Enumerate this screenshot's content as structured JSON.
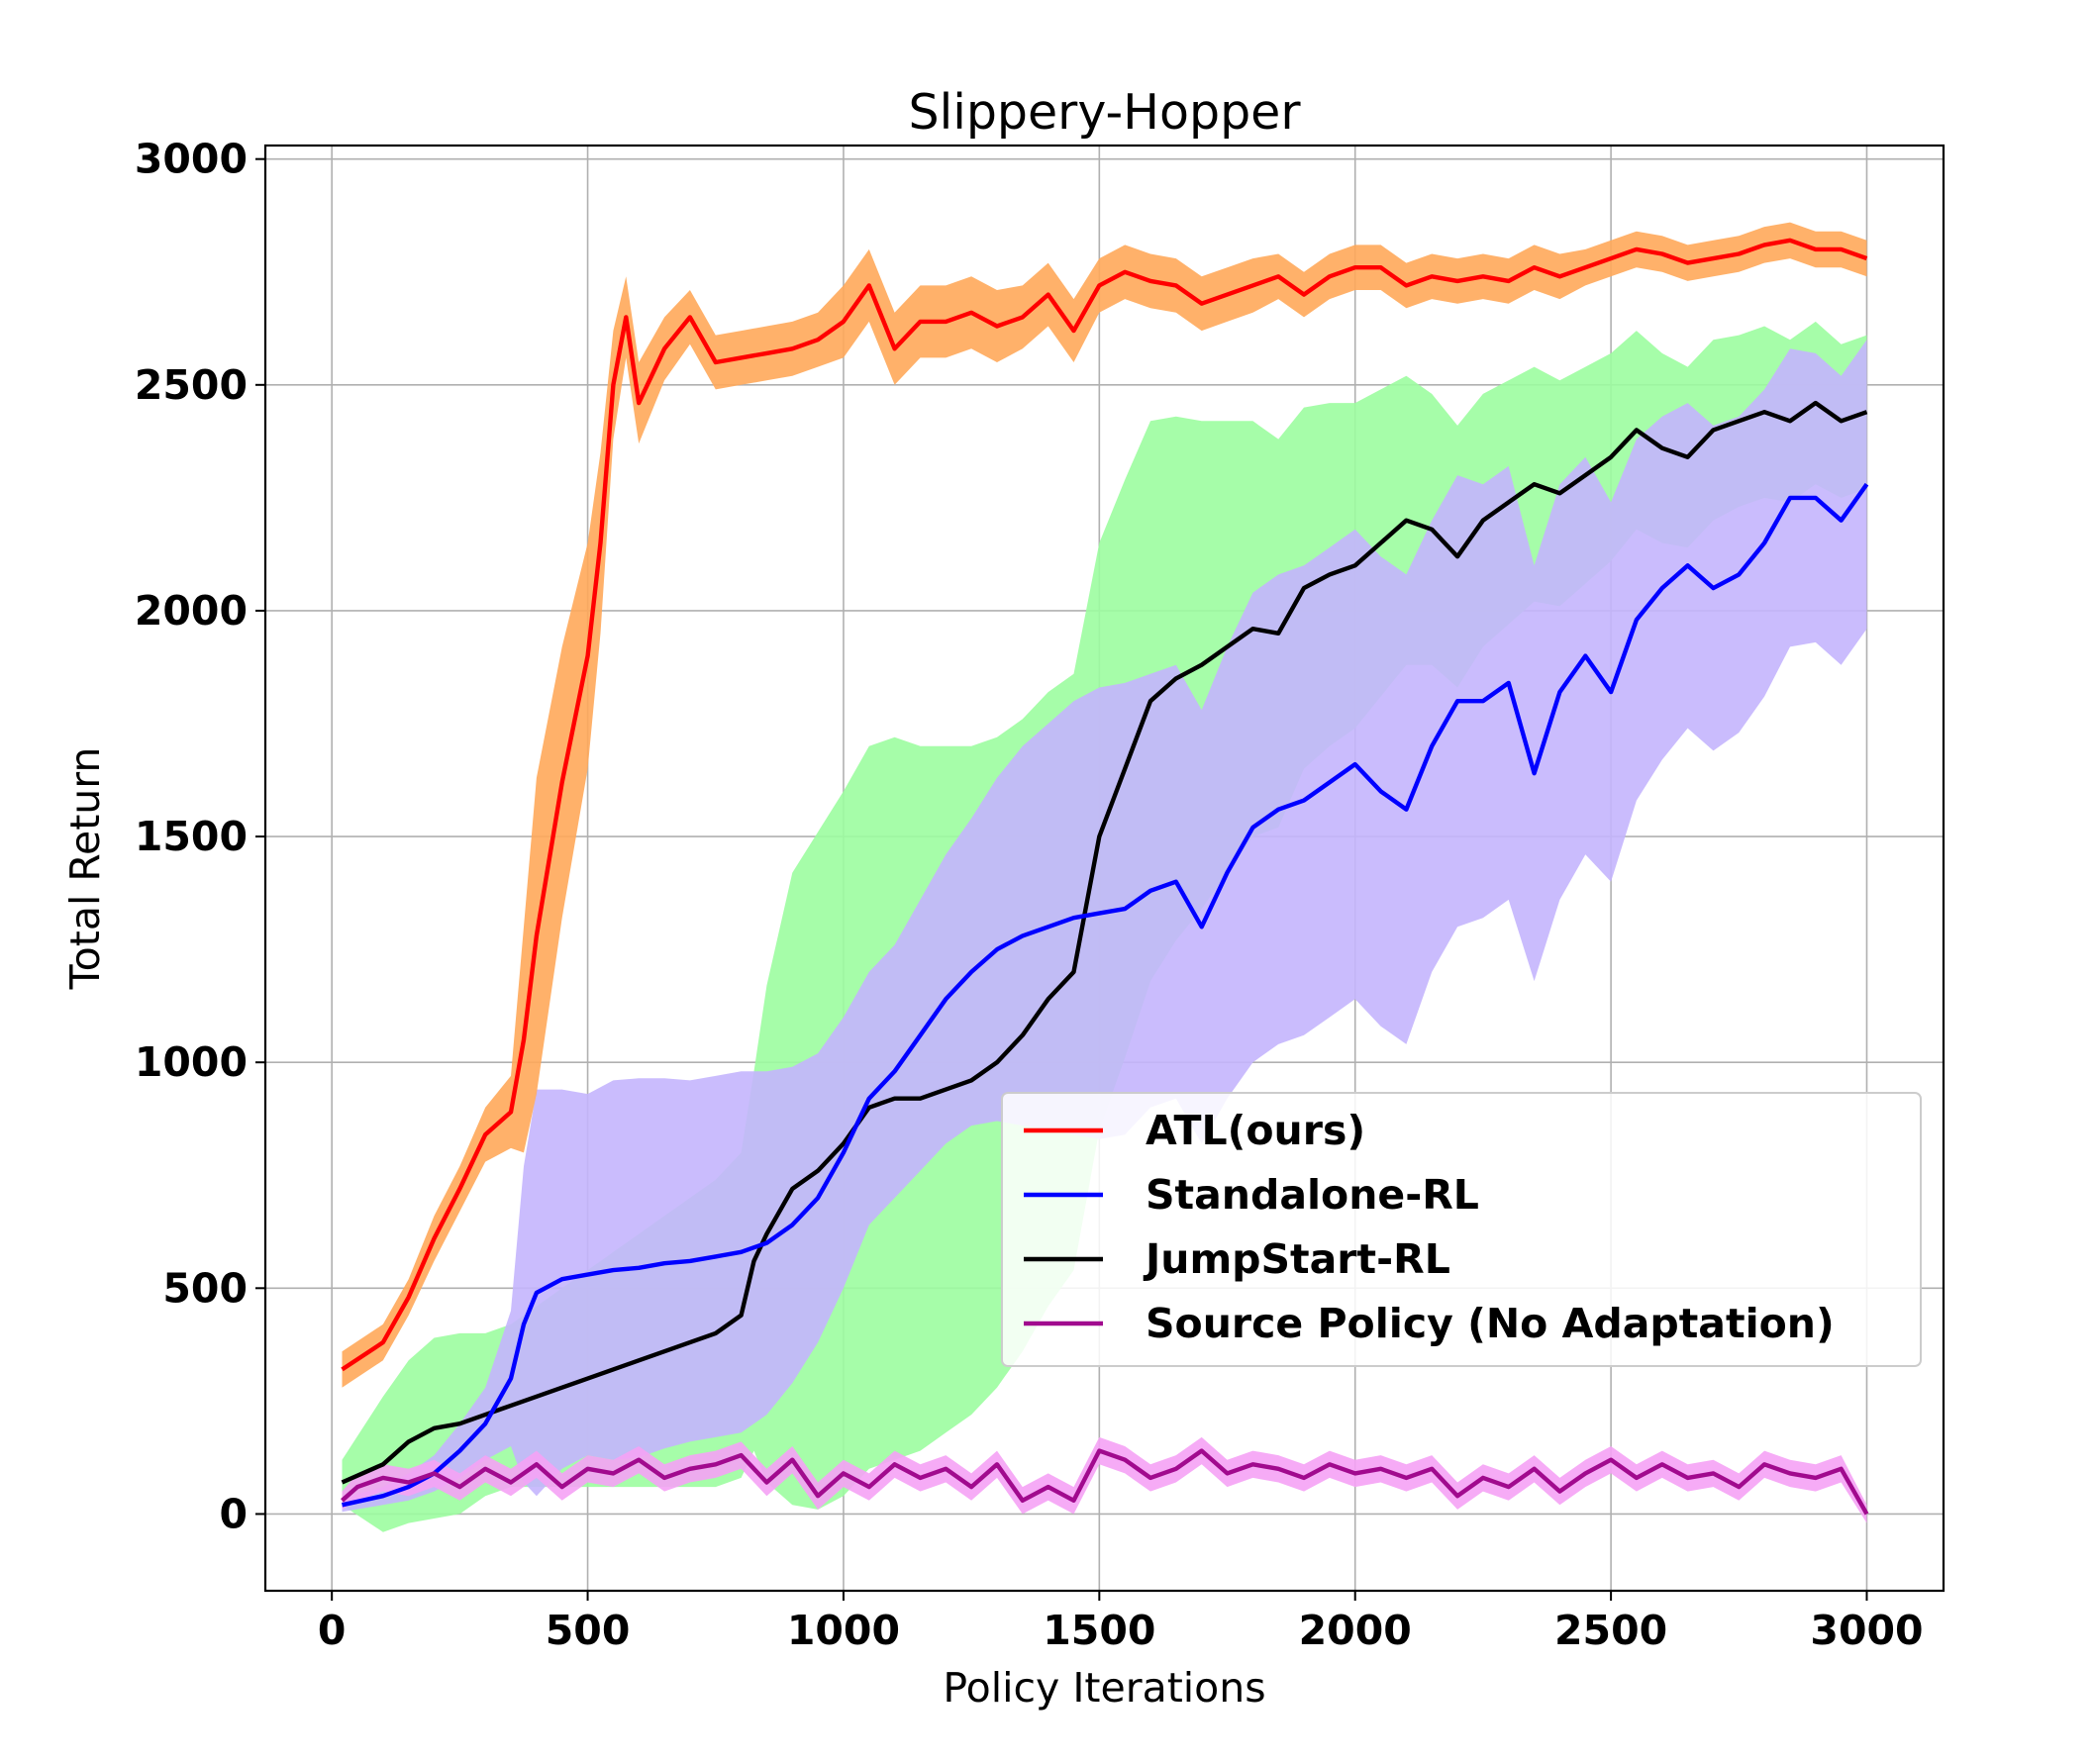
{
  "chart_data": {
    "type": "line",
    "title": "Slippery-Hopper",
    "xlabel": "Policy Iterations",
    "ylabel": "Total Return",
    "xlim": [
      -130,
      3150
    ],
    "ylim": [
      -170,
      3030
    ],
    "xticks": [
      0,
      500,
      1000,
      1500,
      2000,
      2500,
      3000
    ],
    "yticks": [
      0,
      500,
      1000,
      1500,
      2000,
      2500,
      3000
    ],
    "grid": true,
    "legend_position": "center-right",
    "series": [
      {
        "name": "ATL(ours)",
        "color": "#ff0000",
        "band_color": "#ffa95a",
        "x": [
          20,
          100,
          150,
          200,
          250,
          300,
          350,
          375,
          400,
          450,
          500,
          525,
          550,
          575,
          600,
          650,
          700,
          750,
          800,
          850,
          900,
          950,
          1000,
          1050,
          1100,
          1150,
          1200,
          1250,
          1300,
          1350,
          1400,
          1450,
          1500,
          1550,
          1600,
          1650,
          1700,
          1750,
          1800,
          1850,
          1900,
          1950,
          2000,
          2050,
          2100,
          2150,
          2200,
          2250,
          2300,
          2350,
          2400,
          2450,
          2500,
          2550,
          2600,
          2650,
          2700,
          2750,
          2800,
          2850,
          2900,
          2950,
          3000
        ],
        "y": [
          320,
          380,
          480,
          610,
          720,
          840,
          890,
          1050,
          1280,
          1620,
          1900,
          2150,
          2500,
          2650,
          2460,
          2580,
          2650,
          2550,
          2560,
          2570,
          2580,
          2600,
          2640,
          2720,
          2580,
          2640,
          2640,
          2660,
          2630,
          2650,
          2700,
          2620,
          2720,
          2750,
          2730,
          2720,
          2680,
          2700,
          2720,
          2740,
          2700,
          2740,
          2760,
          2760,
          2720,
          2740,
          2730,
          2740,
          2730,
          2760,
          2740,
          2760,
          2780,
          2800,
          2790,
          2770,
          2780,
          2790,
          2810,
          2820,
          2800,
          2800,
          2780
        ],
        "band": [
          40,
          40,
          40,
          50,
          50,
          60,
          80,
          250,
          350,
          300,
          250,
          200,
          120,
          90,
          90,
          70,
          60,
          60,
          60,
          60,
          60,
          60,
          80,
          80,
          80,
          80,
          80,
          80,
          80,
          70,
          70,
          70,
          60,
          60,
          60,
          60,
          60,
          60,
          60,
          50,
          50,
          50,
          50,
          50,
          50,
          50,
          50,
          50,
          50,
          50,
          50,
          40,
          40,
          40,
          40,
          40,
          40,
          40,
          40,
          40,
          40,
          40,
          40
        ]
      },
      {
        "name": "Standalone-RL",
        "color": "#0000ff",
        "band_color": "#c4b5fd",
        "x": [
          20,
          100,
          150,
          200,
          250,
          300,
          350,
          375,
          400,
          450,
          500,
          550,
          600,
          650,
          700,
          750,
          800,
          850,
          900,
          950,
          1000,
          1050,
          1100,
          1150,
          1200,
          1250,
          1300,
          1350,
          1400,
          1450,
          1500,
          1550,
          1600,
          1650,
          1700,
          1750,
          1800,
          1850,
          1900,
          1950,
          2000,
          2050,
          2100,
          2150,
          2200,
          2250,
          2300,
          2350,
          2400,
          2450,
          2500,
          2550,
          2600,
          2650,
          2700,
          2750,
          2800,
          2850,
          2900,
          2950,
          3000
        ],
        "y": [
          20,
          40,
          60,
          90,
          140,
          200,
          300,
          420,
          490,
          520,
          530,
          540,
          545,
          555,
          560,
          570,
          580,
          600,
          640,
          700,
          800,
          920,
          980,
          1060,
          1140,
          1200,
          1250,
          1280,
          1300,
          1320,
          1330,
          1340,
          1380,
          1400,
          1300,
          1420,
          1520,
          1560,
          1580,
          1620,
          1660,
          1600,
          1560,
          1700,
          1800,
          1800,
          1840,
          1640,
          1820,
          1900,
          1820,
          1980,
          2050,
          2100,
          2050,
          2080,
          2150,
          2250,
          2250,
          2200,
          2280
        ],
        "band": [
          15,
          20,
          30,
          40,
          60,
          80,
          150,
          350,
          450,
          420,
          400,
          420,
          420,
          410,
          400,
          400,
          400,
          380,
          350,
          320,
          300,
          280,
          280,
          300,
          320,
          340,
          380,
          420,
          450,
          480,
          500,
          500,
          480,
          480,
          480,
          500,
          520,
          520,
          520,
          520,
          520,
          520,
          520,
          500,
          500,
          480,
          480,
          460,
          460,
          440,
          420,
          400,
          380,
          360,
          360,
          350,
          340,
          330,
          320,
          320,
          320
        ]
      },
      {
        "name": "JumpStart-RL",
        "color": "#000000",
        "band_color": "#9cfda0",
        "x": [
          20,
          100,
          150,
          200,
          250,
          300,
          350,
          400,
          450,
          500,
          550,
          600,
          650,
          700,
          750,
          800,
          825,
          850,
          900,
          950,
          1000,
          1050,
          1100,
          1150,
          1200,
          1250,
          1300,
          1350,
          1400,
          1450,
          1500,
          1550,
          1600,
          1650,
          1700,
          1750,
          1800,
          1850,
          1900,
          1950,
          2000,
          2050,
          2100,
          2150,
          2200,
          2250,
          2300,
          2350,
          2400,
          2450,
          2500,
          2550,
          2600,
          2650,
          2700,
          2750,
          2800,
          2850,
          2900,
          2950,
          3000
        ],
        "y": [
          70,
          110,
          160,
          190,
          200,
          220,
          240,
          260,
          280,
          300,
          320,
          340,
          360,
          380,
          400,
          440,
          560,
          620,
          720,
          760,
          820,
          900,
          920,
          920,
          940,
          960,
          1000,
          1060,
          1140,
          1200,
          1500,
          1650,
          1800,
          1850,
          1880,
          1920,
          1960,
          1950,
          2050,
          2080,
          2100,
          2150,
          2200,
          2180,
          2120,
          2200,
          2240,
          2280,
          2260,
          2300,
          2340,
          2400,
          2360,
          2340,
          2400,
          2420,
          2440,
          2420,
          2460,
          2420,
          2440
        ],
        "band": [
          50,
          150,
          180,
          200,
          200,
          180,
          180,
          200,
          220,
          240,
          260,
          280,
          300,
          320,
          340,
          360,
          420,
          550,
          700,
          750,
          780,
          800,
          800,
          780,
          760,
          740,
          720,
          700,
          680,
          660,
          650,
          640,
          620,
          580,
          540,
          500,
          460,
          430,
          400,
          380,
          360,
          340,
          320,
          300,
          290,
          280,
          270,
          260,
          250,
          240,
          230,
          220,
          210,
          200,
          200,
          190,
          190,
          180,
          180,
          170,
          170
        ]
      },
      {
        "name": "Source Policy (No Adaptation)",
        "color": "#a10a8e",
        "band_color": "#f5a2f5",
        "x": [
          20,
          50,
          100,
          150,
          200,
          250,
          300,
          350,
          400,
          450,
          500,
          550,
          600,
          650,
          700,
          750,
          800,
          850,
          900,
          950,
          1000,
          1050,
          1100,
          1150,
          1200,
          1250,
          1300,
          1350,
          1400,
          1450,
          1500,
          1550,
          1600,
          1650,
          1700,
          1750,
          1800,
          1850,
          1900,
          1950,
          2000,
          2050,
          2100,
          2150,
          2200,
          2250,
          2300,
          2350,
          2400,
          2450,
          2500,
          2550,
          2600,
          2650,
          2700,
          2750,
          2800,
          2850,
          2900,
          2950,
          3000
        ],
        "y": [
          30,
          60,
          80,
          70,
          90,
          60,
          100,
          70,
          110,
          60,
          100,
          90,
          120,
          80,
          100,
          110,
          130,
          70,
          120,
          40,
          90,
          60,
          110,
          80,
          100,
          60,
          110,
          30,
          60,
          30,
          140,
          120,
          80,
          100,
          140,
          90,
          110,
          100,
          80,
          110,
          90,
          100,
          80,
          100,
          40,
          80,
          60,
          100,
          50,
          90,
          120,
          80,
          110,
          80,
          90,
          60,
          110,
          90,
          80,
          100,
          0
        ],
        "band": [
          20,
          30,
          30,
          30,
          30,
          30,
          30,
          30,
          30,
          30,
          30,
          30,
          30,
          30,
          30,
          30,
          30,
          30,
          30,
          30,
          30,
          30,
          30,
          30,
          30,
          30,
          30,
          30,
          30,
          30,
          30,
          30,
          30,
          30,
          30,
          30,
          30,
          30,
          30,
          30,
          30,
          30,
          30,
          30,
          30,
          30,
          30,
          30,
          30,
          30,
          30,
          30,
          30,
          30,
          30,
          30,
          30,
          30,
          30,
          30,
          20
        ]
      }
    ]
  }
}
